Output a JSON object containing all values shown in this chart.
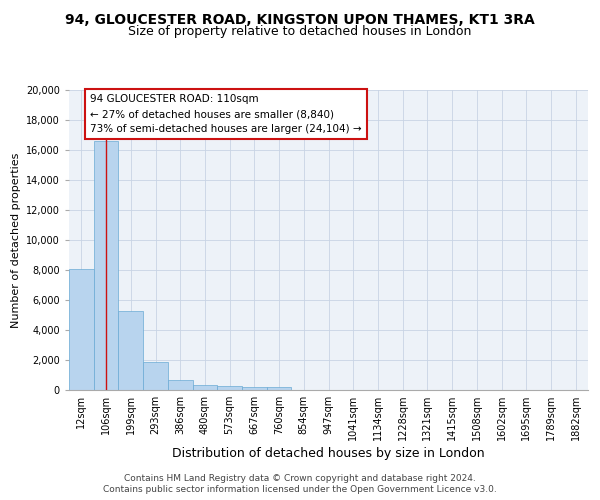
{
  "title1": "94, GLOUCESTER ROAD, KINGSTON UPON THAMES, KT1 3RA",
  "title2": "Size of property relative to detached houses in London",
  "xlabel": "Distribution of detached houses by size in London",
  "ylabel": "Number of detached properties",
  "categories": [
    "12sqm",
    "106sqm",
    "199sqm",
    "293sqm",
    "386sqm",
    "480sqm",
    "573sqm",
    "667sqm",
    "760sqm",
    "854sqm",
    "947sqm",
    "1041sqm",
    "1134sqm",
    "1228sqm",
    "1321sqm",
    "1415sqm",
    "1508sqm",
    "1602sqm",
    "1695sqm",
    "1789sqm",
    "1882sqm"
  ],
  "bar_heights": [
    8100,
    16600,
    5300,
    1850,
    650,
    350,
    270,
    220,
    180,
    0,
    0,
    0,
    0,
    0,
    0,
    0,
    0,
    0,
    0,
    0,
    0
  ],
  "bar_color": "#b8d4ee",
  "bar_edge_color": "#6aaad4",
  "grid_color": "#c8d4e4",
  "background_color": "#edf2f8",
  "vline_x": 1,
  "vline_color": "#cc1111",
  "annotation_line1": "94 GLOUCESTER ROAD: 110sqm",
  "annotation_line2": "← 27% of detached houses are smaller (8,840)",
  "annotation_line3": "73% of semi-detached houses are larger (24,104) →",
  "annotation_box_edgecolor": "#cc1111",
  "ylim": [
    0,
    20000
  ],
  "yticks": [
    0,
    2000,
    4000,
    6000,
    8000,
    10000,
    12000,
    14000,
    16000,
    18000,
    20000
  ],
  "footer1": "Contains HM Land Registry data © Crown copyright and database right 2024.",
  "footer2": "Contains public sector information licensed under the Open Government Licence v3.0.",
  "title1_fontsize": 10,
  "title2_fontsize": 9,
  "ylabel_fontsize": 8,
  "xlabel_fontsize": 9,
  "tick_fontsize": 7,
  "footer_fontsize": 6.5
}
